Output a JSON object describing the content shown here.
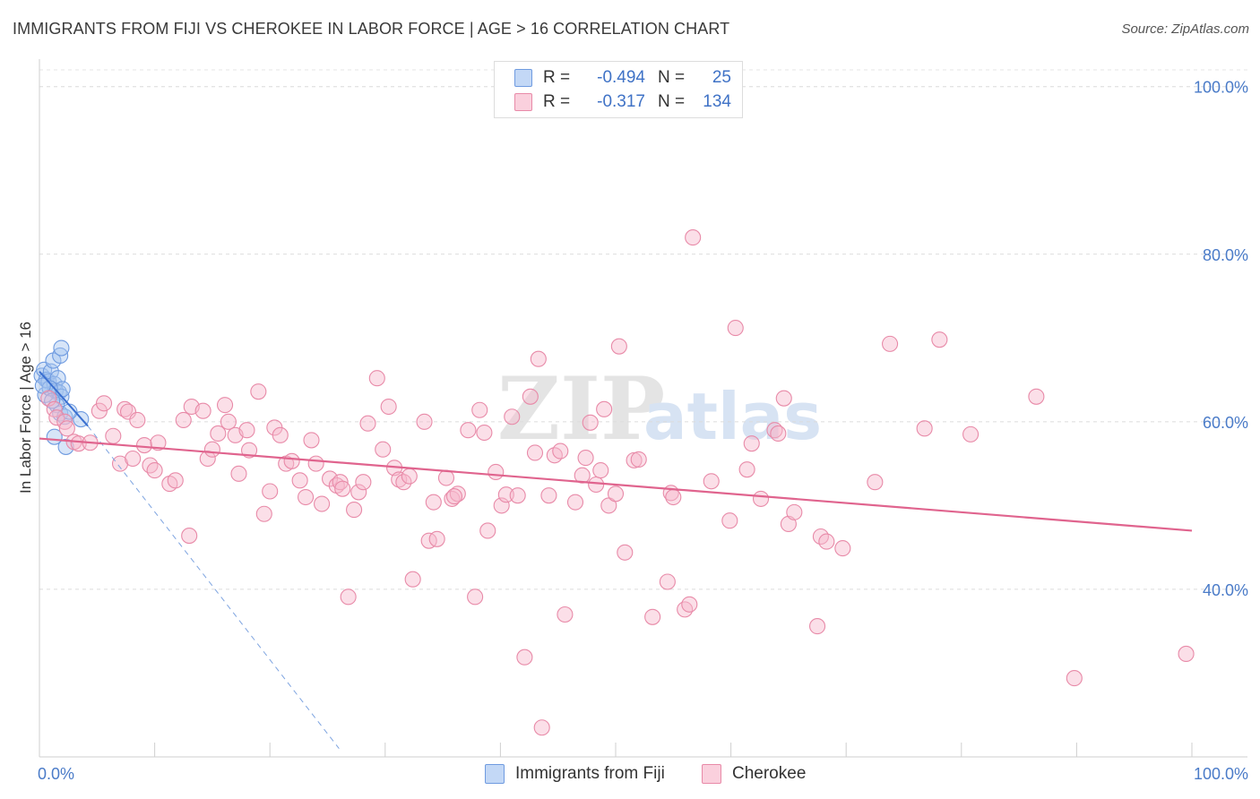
{
  "header": {
    "title": "IMMIGRANTS FROM FIJI VS CHEROKEE IN LABOR FORCE | AGE > 16 CORRELATION CHART",
    "source": "Source: ZipAtlas.com"
  },
  "watermark": {
    "zip": "ZIP",
    "atlas": "atlas"
  },
  "legend": {
    "rows": [
      {
        "r_label": "R =",
        "r_value": "-0.494",
        "n_label": "N =",
        "n_value": "25",
        "color": "#a7c5f0",
        "border": "#6f9be0"
      },
      {
        "r_label": "R =",
        "r_value": "-0.317",
        "n_label": "N =",
        "n_value": "134",
        "color": "#f7b8cb",
        "border": "#e88aa8"
      }
    ]
  },
  "bottom_legend": [
    {
      "label": "Immigrants from Fiji",
      "color": "#a7c5f0",
      "border": "#6f9be0"
    },
    {
      "label": "Cherokee",
      "color": "#f7b8cb",
      "border": "#e88aa8"
    }
  ],
  "chart_data": {
    "type": "scatter",
    "title": "IMMIGRANTS FROM FIJI VS CHEROKEE IN LABOR FORCE | AGE > 16 CORRELATION CHART",
    "xlabel": "",
    "ylabel": "In Labor Force | Age > 16",
    "xlim": [
      0,
      100
    ],
    "ylim": [
      20,
      102
    ],
    "x_tick_labels": [
      "0.0%",
      "100.0%"
    ],
    "y_ticks": [
      40,
      60,
      80,
      100
    ],
    "y_tick_labels": [
      "40.0%",
      "60.0%",
      "80.0%",
      "100.0%"
    ],
    "grid": "horizontal dashed",
    "legend_placement": "top-center",
    "series": [
      {
        "name": "Immigrants from Fiji",
        "color": "#a7c5f0",
        "stroke": "#6f9be0",
        "trend_color": "#3a6fd0",
        "r": -0.494,
        "n": 25,
        "trend": {
          "x0": 0.0,
          "y0": 66.0,
          "x1": 4.2,
          "y1": 59.5,
          "dash_to_x": 26.0,
          "dash_to_y": 21.0
        },
        "points": [
          [
            0.2,
            65.5
          ],
          [
            0.4,
            66.2
          ],
          [
            0.6,
            65.0
          ],
          [
            0.8,
            64.8
          ],
          [
            1.0,
            66.0
          ],
          [
            0.5,
            63.2
          ],
          [
            1.3,
            64.5
          ],
          [
            1.6,
            65.2
          ],
          [
            1.2,
            67.3
          ],
          [
            1.8,
            67.9
          ],
          [
            1.9,
            68.8
          ],
          [
            1.4,
            63.7
          ],
          [
            1.7,
            63.5
          ],
          [
            1.9,
            63.0
          ],
          [
            2.0,
            63.9
          ],
          [
            1.5,
            62.0
          ],
          [
            1.8,
            61.0
          ],
          [
            2.2,
            60.6
          ],
          [
            1.3,
            58.2
          ],
          [
            2.3,
            57.0
          ],
          [
            3.6,
            60.3
          ],
          [
            0.9,
            64.0
          ],
          [
            1.1,
            62.5
          ],
          [
            0.3,
            64.3
          ],
          [
            2.6,
            61.2
          ]
        ]
      },
      {
        "name": "Cherokee",
        "color": "#f7b8cb",
        "stroke": "#e88aa8",
        "trend_color": "#e0648e",
        "r": -0.317,
        "n": 134,
        "trend": {
          "x0": 0.0,
          "y0": 58.0,
          "x1": 100.0,
          "y1": 47.0
        },
        "points": [
          [
            0.8,
            62.8
          ],
          [
            1.3,
            61.5
          ],
          [
            1.5,
            60.5
          ],
          [
            2.2,
            60.0
          ],
          [
            2.4,
            59.2
          ],
          [
            3.0,
            57.6
          ],
          [
            3.4,
            57.4
          ],
          [
            4.4,
            57.5
          ],
          [
            5.2,
            61.3
          ],
          [
            5.6,
            62.2
          ],
          [
            6.4,
            58.3
          ],
          [
            7.0,
            55.0
          ],
          [
            7.4,
            61.5
          ],
          [
            7.7,
            61.2
          ],
          [
            8.1,
            55.6
          ],
          [
            8.5,
            60.2
          ],
          [
            9.1,
            57.2
          ],
          [
            9.6,
            54.8
          ],
          [
            10.3,
            57.5
          ],
          [
            10.0,
            54.2
          ],
          [
            11.3,
            52.6
          ],
          [
            11.8,
            53.0
          ],
          [
            12.5,
            60.2
          ],
          [
            13.2,
            61.8
          ],
          [
            13.0,
            46.4
          ],
          [
            14.2,
            61.3
          ],
          [
            14.6,
            55.6
          ],
          [
            15.0,
            56.7
          ],
          [
            15.5,
            58.6
          ],
          [
            16.1,
            62.0
          ],
          [
            16.4,
            60.0
          ],
          [
            17.0,
            58.4
          ],
          [
            17.3,
            53.8
          ],
          [
            18.0,
            59.0
          ],
          [
            18.2,
            56.6
          ],
          [
            19.0,
            63.6
          ],
          [
            19.5,
            49.0
          ],
          [
            20.0,
            51.7
          ],
          [
            20.4,
            59.3
          ],
          [
            20.9,
            58.4
          ],
          [
            21.4,
            55.0
          ],
          [
            21.9,
            55.3
          ],
          [
            22.6,
            53.0
          ],
          [
            23.1,
            51.0
          ],
          [
            23.6,
            57.8
          ],
          [
            24.0,
            55.0
          ],
          [
            24.5,
            50.2
          ],
          [
            25.2,
            53.2
          ],
          [
            25.8,
            52.4
          ],
          [
            26.1,
            52.8
          ],
          [
            26.3,
            52.0
          ],
          [
            26.8,
            39.1
          ],
          [
            27.3,
            49.5
          ],
          [
            27.7,
            51.6
          ],
          [
            28.1,
            52.8
          ],
          [
            28.5,
            59.8
          ],
          [
            29.3,
            65.2
          ],
          [
            29.8,
            56.7
          ],
          [
            30.3,
            61.8
          ],
          [
            30.8,
            54.5
          ],
          [
            31.2,
            53.1
          ],
          [
            31.6,
            52.8
          ],
          [
            32.1,
            53.5
          ],
          [
            32.4,
            41.2
          ],
          [
            33.4,
            60.0
          ],
          [
            33.8,
            45.8
          ],
          [
            34.5,
            46.0
          ],
          [
            34.2,
            50.4
          ],
          [
            35.3,
            53.3
          ],
          [
            35.8,
            50.8
          ],
          [
            36.3,
            51.4
          ],
          [
            36.0,
            51.1
          ],
          [
            37.2,
            59.0
          ],
          [
            37.8,
            39.1
          ],
          [
            38.2,
            61.4
          ],
          [
            38.6,
            58.7
          ],
          [
            38.9,
            47.0
          ],
          [
            39.6,
            54.0
          ],
          [
            40.1,
            50.0
          ],
          [
            40.5,
            51.3
          ],
          [
            41.0,
            60.6
          ],
          [
            41.5,
            51.2
          ],
          [
            42.1,
            31.9
          ],
          [
            42.6,
            63.0
          ],
          [
            43.0,
            56.3
          ],
          [
            43.3,
            67.5
          ],
          [
            43.6,
            23.5
          ],
          [
            44.2,
            51.2
          ],
          [
            44.7,
            56.0
          ],
          [
            45.2,
            56.5
          ],
          [
            45.6,
            37.0
          ],
          [
            46.5,
            50.4
          ],
          [
            47.1,
            53.6
          ],
          [
            47.4,
            55.7
          ],
          [
            47.8,
            59.9
          ],
          [
            48.3,
            52.5
          ],
          [
            48.7,
            54.2
          ],
          [
            49.0,
            61.5
          ],
          [
            49.4,
            50.0
          ],
          [
            50.0,
            51.4
          ],
          [
            50.3,
            69.0
          ],
          [
            50.8,
            44.4
          ],
          [
            51.6,
            55.4
          ],
          [
            52.0,
            55.5
          ],
          [
            53.2,
            36.7
          ],
          [
            54.5,
            40.9
          ],
          [
            54.8,
            51.5
          ],
          [
            55.0,
            51.0
          ],
          [
            56.0,
            37.6
          ],
          [
            56.4,
            38.2
          ],
          [
            56.7,
            82.0
          ],
          [
            58.3,
            52.9
          ],
          [
            59.9,
            48.2
          ],
          [
            60.4,
            71.2
          ],
          [
            61.4,
            54.3
          ],
          [
            61.8,
            57.4
          ],
          [
            62.6,
            50.8
          ],
          [
            63.8,
            59.0
          ],
          [
            64.1,
            58.6
          ],
          [
            64.6,
            62.8
          ],
          [
            65.0,
            47.8
          ],
          [
            65.5,
            49.2
          ],
          [
            67.5,
            35.6
          ],
          [
            67.8,
            46.3
          ],
          [
            68.3,
            45.7
          ],
          [
            69.7,
            44.9
          ],
          [
            72.5,
            52.8
          ],
          [
            73.8,
            69.3
          ],
          [
            76.8,
            59.2
          ],
          [
            78.1,
            69.8
          ],
          [
            80.8,
            58.5
          ],
          [
            89.8,
            29.4
          ],
          [
            99.5,
            32.3
          ],
          [
            86.5,
            63.0
          ]
        ]
      }
    ]
  }
}
